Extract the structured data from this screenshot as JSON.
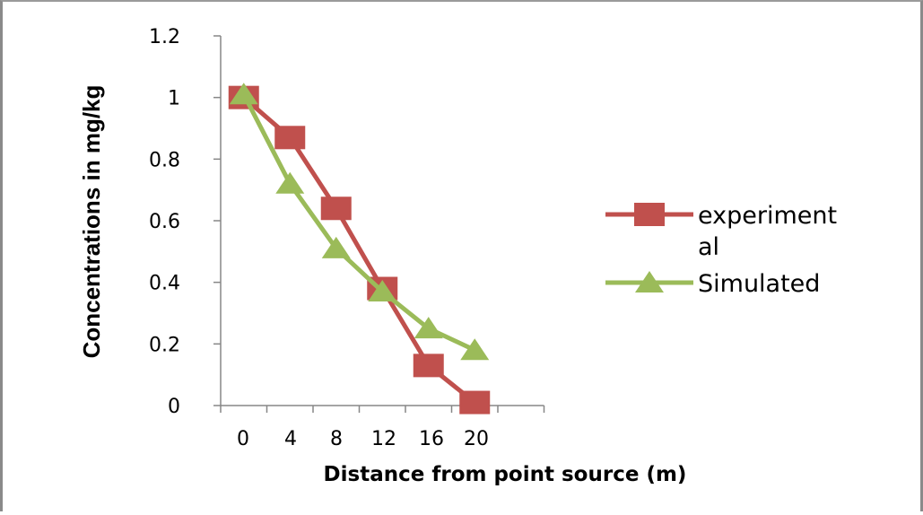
{
  "chart_data": {
    "type": "line",
    "title": "",
    "xlabel": "Distance from point source (m)",
    "ylabel": "Concentrations in mg/kg",
    "x_categories": [
      "0",
      "4",
      "8",
      "12",
      "16",
      "20"
    ],
    "ylim": [
      0,
      1.2
    ],
    "y_ticks": [
      "0",
      "0.2",
      "0.4",
      "0.6",
      "0.8",
      "1",
      "1.2"
    ],
    "grid": false,
    "legend_position": "right",
    "series": [
      {
        "name": "experimental",
        "legend_lines": [
          "experiment",
          "al"
        ],
        "marker": "square",
        "color": "#c0504d",
        "x": [
          0,
          4,
          8,
          12,
          16,
          20
        ],
        "values": [
          1.0,
          0.87,
          0.64,
          0.38,
          0.13,
          0.01
        ]
      },
      {
        "name": "Simulated",
        "legend_lines": [
          "Simulated"
        ],
        "marker": "triangle",
        "color": "#9bbb59",
        "x": [
          0,
          4,
          8,
          12,
          16,
          20
        ],
        "values": [
          1.01,
          0.72,
          0.51,
          0.37,
          0.25,
          0.18
        ]
      }
    ]
  }
}
